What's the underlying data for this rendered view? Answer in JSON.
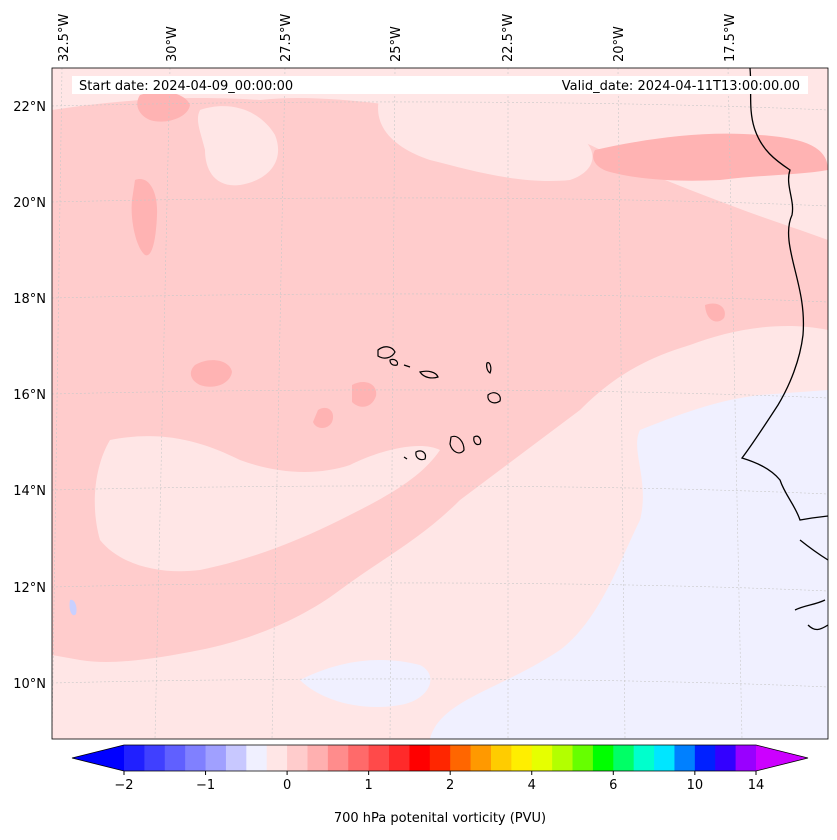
{
  "header": {
    "start_date": "Start date: 2024-04-09_00:00:00",
    "valid_date": "Valid_date: 2024-04-11T13:00:00.00"
  },
  "map": {
    "region": "Eastern tropical Atlantic / Cabo Verde and West African coast",
    "longitude_labels": [
      "32.5°W",
      "30°W",
      "27.5°W",
      "25°W",
      "22.5°W",
      "20°W",
      "17.5°W"
    ],
    "latitude_labels": [
      "22°N",
      "20°N",
      "18°N",
      "16°N",
      "14°N",
      "12°N",
      "10°N"
    ],
    "colors": {
      "land_low": "#f0f0ff",
      "field_light": "#ffe6e6",
      "field_mid": "#ffcccc",
      "field_strong": "#ffb3b3",
      "field_negative": "#c8d0ff",
      "coastline": "#000000",
      "gridline": "#c8c8c8"
    }
  },
  "colorbar": {
    "label": "700 hPa potenital vorticity (PVU)",
    "tick_labels": [
      "−2",
      "−1",
      "0",
      "1",
      "2",
      "4",
      "6",
      "10",
      "14"
    ],
    "tick_values": [
      -2,
      -1,
      0,
      1,
      2,
      4,
      6,
      10,
      14
    ],
    "colors": [
      "#0000ff",
      "#2020ff",
      "#4040ff",
      "#6060ff",
      "#8080ff",
      "#a0a0ff",
      "#c8c8ff",
      "#f0f0ff",
      "#ffe6e6",
      "#ffcccc",
      "#ffb0b0",
      "#ff8c8c",
      "#ff6a6a",
      "#ff4a4a",
      "#ff2a2a",
      "#ff0000",
      "#ff2600",
      "#ff6600",
      "#ff9900",
      "#ffcc00",
      "#ffee00",
      "#e6ff00",
      "#b3ff00",
      "#66ff00",
      "#00ff00",
      "#00ff66",
      "#00ffcc",
      "#00e6ff",
      "#0080ff",
      "#0020ff",
      "#3300ff",
      "#9900ff",
      "#cc00ff"
    ]
  }
}
